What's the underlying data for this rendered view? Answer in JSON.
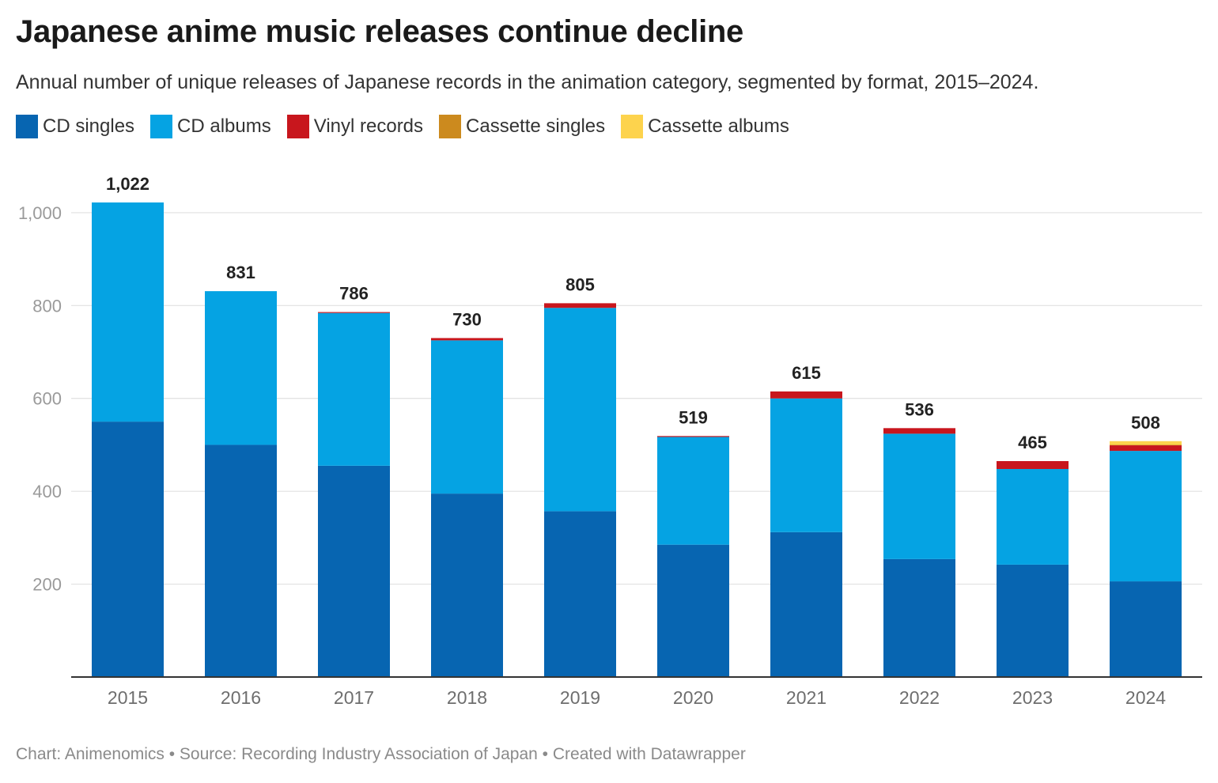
{
  "header": {
    "title": "Japanese anime music releases continue decline",
    "subtitle": "Annual number of unique releases of Japanese records in the animation category, segmented by format, 2015–2024."
  },
  "footer": {
    "credit": "Chart: Animenomics • Source: Recording Industry Association of Japan • Created with Datawrapper"
  },
  "chart_data": {
    "type": "bar",
    "stacked": true,
    "title": "Japanese anime music releases continue decline",
    "subtitle": "Annual number of unique releases of Japanese records in the animation category, segmented by format, 2015–2024.",
    "xlabel": "",
    "ylabel": "",
    "ylim": [
      0,
      1022
    ],
    "yticks": [
      200,
      400,
      600,
      800,
      1000
    ],
    "ytick_labels": [
      "200",
      "400",
      "600",
      "800",
      "1,000"
    ],
    "grid": true,
    "legend_position": "top-left",
    "categories": [
      "2015",
      "2016",
      "2017",
      "2018",
      "2019",
      "2020",
      "2021",
      "2022",
      "2023",
      "2024"
    ],
    "totals": [
      1022,
      831,
      786,
      730,
      805,
      519,
      615,
      536,
      465,
      508
    ],
    "total_labels": [
      "1,022",
      "831",
      "786",
      "730",
      "805",
      "519",
      "615",
      "536",
      "465",
      "508"
    ],
    "series": [
      {
        "name": "CD singles",
        "color": "#0765b1",
        "values": [
          550,
          500,
          455,
          395,
          357,
          285,
          312,
          254,
          242,
          206
        ]
      },
      {
        "name": "CD albums",
        "color": "#05a3e3",
        "values": [
          472,
          331,
          329,
          330,
          438,
          232,
          288,
          270,
          206,
          281
        ]
      },
      {
        "name": "Vinyl records",
        "color": "#c8161d",
        "values": [
          0,
          0,
          2,
          5,
          10,
          2,
          15,
          12,
          17,
          12
        ]
      },
      {
        "name": "Cassette singles",
        "color": "#cc8a1e",
        "values": [
          0,
          0,
          0,
          0,
          0,
          0,
          0,
          0,
          0,
          1
        ]
      },
      {
        "name": "Cassette albums",
        "color": "#fdd34d",
        "values": [
          0,
          0,
          0,
          0,
          0,
          0,
          0,
          0,
          0,
          8
        ]
      }
    ]
  }
}
